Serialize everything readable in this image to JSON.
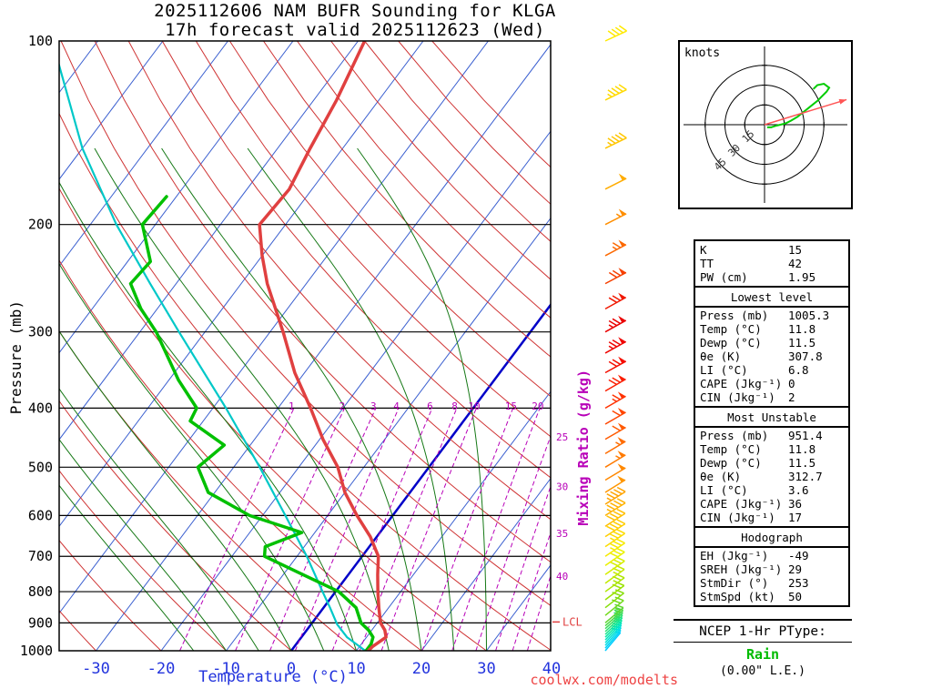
{
  "title": {
    "line1": "2025112606 NAM BUFR Sounding for KLGA",
    "line2": "17h forecast valid 2025112623 (Wed)"
  },
  "axes": {
    "pressure_label": "Pressure (mb)",
    "temperature_label": "Temperature (°C)",
    "mixing_ratio_label": "Mixing Ratio (g/kg)",
    "pressure_ticks": [
      100,
      200,
      300,
      400,
      500,
      600,
      700,
      800,
      900,
      1000
    ],
    "temperature_ticks": [
      -30,
      -20,
      -10,
      0,
      10,
      20,
      30,
      40
    ]
  },
  "watermark": "coolwx.com/modelts",
  "lcl_label": "LCL",
  "hodograph": {
    "units_label": "knots",
    "rings": [
      15,
      30,
      45
    ],
    "trace": [
      [
        2,
        -2
      ],
      [
        5,
        -2
      ],
      [
        8,
        -1
      ],
      [
        12,
        0
      ],
      [
        16,
        1
      ],
      [
        20,
        3
      ],
      [
        25,
        6
      ],
      [
        30,
        10
      ],
      [
        35,
        14
      ],
      [
        40,
        18
      ],
      [
        44,
        22
      ],
      [
        47,
        25
      ],
      [
        49,
        28
      ],
      [
        45,
        31
      ],
      [
        40,
        30
      ],
      [
        37,
        27
      ]
    ],
    "storm_motion": {
      "dir_deg": 253,
      "speed_kt": 50
    }
  },
  "stats": {
    "sections": [
      {
        "title": null,
        "rows": [
          [
            "K",
            "15"
          ],
          [
            "TT",
            "42"
          ],
          [
            "PW (cm)",
            "1.95"
          ]
        ]
      },
      {
        "title": "Lowest level",
        "rows": [
          [
            "Press (mb)",
            "1005.3"
          ],
          [
            "Temp (°C)",
            "11.8"
          ],
          [
            "Dewp (°C)",
            "11.5"
          ],
          [
            "θe (K)",
            "307.8"
          ],
          [
            "LI (°C)",
            "6.8"
          ],
          [
            "CAPE (Jkg⁻¹)",
            "0"
          ],
          [
            "CIN (Jkg⁻¹)",
            "2"
          ]
        ]
      },
      {
        "title": "Most Unstable",
        "rows": [
          [
            "Press (mb)",
            "951.4"
          ],
          [
            "Temp (°C)",
            "11.8"
          ],
          [
            "Dewp (°C)",
            "11.5"
          ],
          [
            "θe (K)",
            "312.7"
          ],
          [
            "LI (°C)",
            "3.6"
          ],
          [
            "CAPE (Jkg⁻¹)",
            "36"
          ],
          [
            "CIN (Jkg⁻¹)",
            "17"
          ]
        ]
      },
      {
        "title": "Hodograph",
        "rows": [
          [
            "EH (Jkg⁻¹)",
            "-49"
          ],
          [
            "SREH (Jkg⁻¹)",
            "29"
          ],
          [
            "",
            ""
          ],
          [
            "StmDir (°)",
            "253"
          ],
          [
            "StmSpd (kt)",
            "50"
          ]
        ]
      }
    ]
  },
  "ptype": {
    "heading": "NCEP 1-Hr PType:",
    "value": "Rain",
    "liquid_equivalent": "(0.00\" L.E.)",
    "value_color": "#00bb00"
  },
  "chart_data": {
    "type": "skewt_log_p",
    "pressure_range_mb": [
      100,
      1000
    ],
    "temperature_axis_c": [
      -30,
      40
    ],
    "isotherms": {
      "min": -120,
      "max": 40,
      "step": 10
    },
    "dry_adiabats": {
      "min": -30,
      "max": 160,
      "step": 10
    },
    "moist_adiabats": [
      -15,
      -10,
      -5,
      0,
      5,
      10,
      15,
      20,
      25,
      30
    ],
    "mixing_ratio_lines": [
      1,
      2,
      3,
      4,
      6,
      8,
      10,
      15,
      20,
      25,
      30,
      35,
      40
    ],
    "mixing_ratio_inner_labels": [
      1,
      2,
      3,
      4,
      6,
      8,
      10,
      15,
      20
    ],
    "mixing_ratio_edge_labels": [
      25,
      30,
      35,
      40
    ],
    "lcl_pressure": 897,
    "temperature_profile": [
      [
        1005,
        11.8
      ],
      [
        985,
        12
      ],
      [
        950,
        13
      ],
      [
        925,
        12
      ],
      [
        900,
        10.5
      ],
      [
        850,
        8.5
      ],
      [
        800,
        6.5
      ],
      [
        750,
        4.5
      ],
      [
        700,
        2.5
      ],
      [
        650,
        -1
      ],
      [
        600,
        -5.5
      ],
      [
        550,
        -10
      ],
      [
        500,
        -14
      ],
      [
        450,
        -19.5
      ],
      [
        400,
        -25
      ],
      [
        350,
        -31.5
      ],
      [
        300,
        -38
      ],
      [
        250,
        -46
      ],
      [
        225,
        -50
      ],
      [
        200,
        -54
      ],
      [
        175,
        -53.5
      ],
      [
        150,
        -55
      ],
      [
        125,
        -56.5
      ],
      [
        100,
        -59
      ]
    ],
    "dewpoint_profile": [
      [
        1005,
        11.5
      ],
      [
        975,
        11.5
      ],
      [
        950,
        11
      ],
      [
        925,
        9.5
      ],
      [
        900,
        7.5
      ],
      [
        850,
        5
      ],
      [
        800,
        0.5
      ],
      [
        750,
        -7
      ],
      [
        700,
        -15
      ],
      [
        675,
        -16
      ],
      [
        640,
        -12
      ],
      [
        600,
        -22
      ],
      [
        550,
        -31
      ],
      [
        500,
        -35.5
      ],
      [
        460,
        -34
      ],
      [
        420,
        -42
      ],
      [
        400,
        -42.5
      ],
      [
        360,
        -48.5
      ],
      [
        300,
        -57.5
      ],
      [
        275,
        -62.5
      ],
      [
        250,
        -67
      ],
      [
        230,
        -66.5
      ],
      [
        200,
        -72
      ],
      [
        180,
        -71.5
      ]
    ],
    "parcel_profile": [
      [
        1005,
        11.8
      ],
      [
        950,
        7
      ],
      [
        905,
        4
      ],
      [
        850,
        1
      ],
      [
        800,
        -2
      ],
      [
        700,
        -8.5
      ],
      [
        600,
        -16.5
      ],
      [
        500,
        -26
      ],
      [
        400,
        -38
      ],
      [
        300,
        -54
      ],
      [
        250,
        -64
      ],
      [
        200,
        -76
      ],
      [
        150,
        -90
      ],
      [
        100,
        -107
      ]
    ],
    "wind_barbs": [
      [
        1000,
        220,
        7,
        "#00ccff"
      ],
      [
        990,
        221,
        8,
        "#00d4f4"
      ],
      [
        980,
        222,
        9,
        "#00dce8"
      ],
      [
        970,
        223,
        10,
        "#00e2d4"
      ],
      [
        960,
        224,
        11,
        "#00e6bc"
      ],
      [
        950,
        225,
        12,
        "#06e8a4"
      ],
      [
        940,
        226,
        13,
        "#16e68c"
      ],
      [
        930,
        227,
        14,
        "#28e274"
      ],
      [
        920,
        228,
        15,
        "#3ade5c"
      ],
      [
        910,
        229,
        16,
        "#4cda46"
      ],
      [
        900,
        230,
        17,
        "#5ed630"
      ],
      [
        875,
        231,
        18,
        "#72da1c"
      ],
      [
        850,
        232,
        20,
        "#86de08"
      ],
      [
        825,
        233,
        22,
        "#9ae200"
      ],
      [
        800,
        234,
        24,
        "#aee600"
      ],
      [
        775,
        234,
        26,
        "#c2ea00"
      ],
      [
        750,
        235,
        28,
        "#d6ee00"
      ],
      [
        725,
        235,
        30,
        "#eaf200"
      ],
      [
        700,
        236,
        33,
        "#f6ea00"
      ],
      [
        675,
        236,
        35,
        "#fcdc00"
      ],
      [
        650,
        237,
        38,
        "#ffce00"
      ],
      [
        625,
        237,
        40,
        "#ffc000"
      ],
      [
        600,
        238,
        43,
        "#ffb200"
      ],
      [
        575,
        238,
        45,
        "#ffa400"
      ],
      [
        550,
        238,
        48,
        "#ff9600"
      ],
      [
        525,
        239,
        50,
        "#ff8800"
      ],
      [
        500,
        239,
        53,
        "#ff7a00"
      ],
      [
        475,
        239,
        55,
        "#ff6c00"
      ],
      [
        450,
        240,
        58,
        "#ff5a00"
      ],
      [
        425,
        240,
        61,
        "#ff4600"
      ],
      [
        400,
        240,
        64,
        "#ff3200"
      ],
      [
        375,
        240,
        68,
        "#fb1e00"
      ],
      [
        350,
        241,
        71,
        "#f50e00"
      ],
      [
        325,
        241,
        73,
        "#ef0400"
      ],
      [
        300,
        241,
        74,
        "#ea0000"
      ],
      [
        275,
        241,
        72,
        "#f01800"
      ],
      [
        250,
        242,
        68,
        "#f64000"
      ],
      [
        225,
        242,
        63,
        "#fc6800"
      ],
      [
        200,
        243,
        57,
        "#ff8e00"
      ],
      [
        175,
        243,
        52,
        "#ffac00"
      ],
      [
        150,
        244,
        47,
        "#ffc600"
      ],
      [
        125,
        244,
        43,
        "#ffda00"
      ],
      [
        100,
        245,
        39,
        "#ffea00"
      ]
    ],
    "colors": {
      "temperature": "#e04040",
      "dewpoint": "#00c000",
      "parcel": "#00c8c8",
      "isotherm": "#3a5fd0",
      "isotherm_zero": "#0000c8",
      "dry_adiabat": "#cf3434",
      "moist_adiabat": "#157815",
      "mixing_ratio": "#b800b8",
      "axis_temp_text": "#2233dd",
      "lcl": "#e04040"
    }
  }
}
